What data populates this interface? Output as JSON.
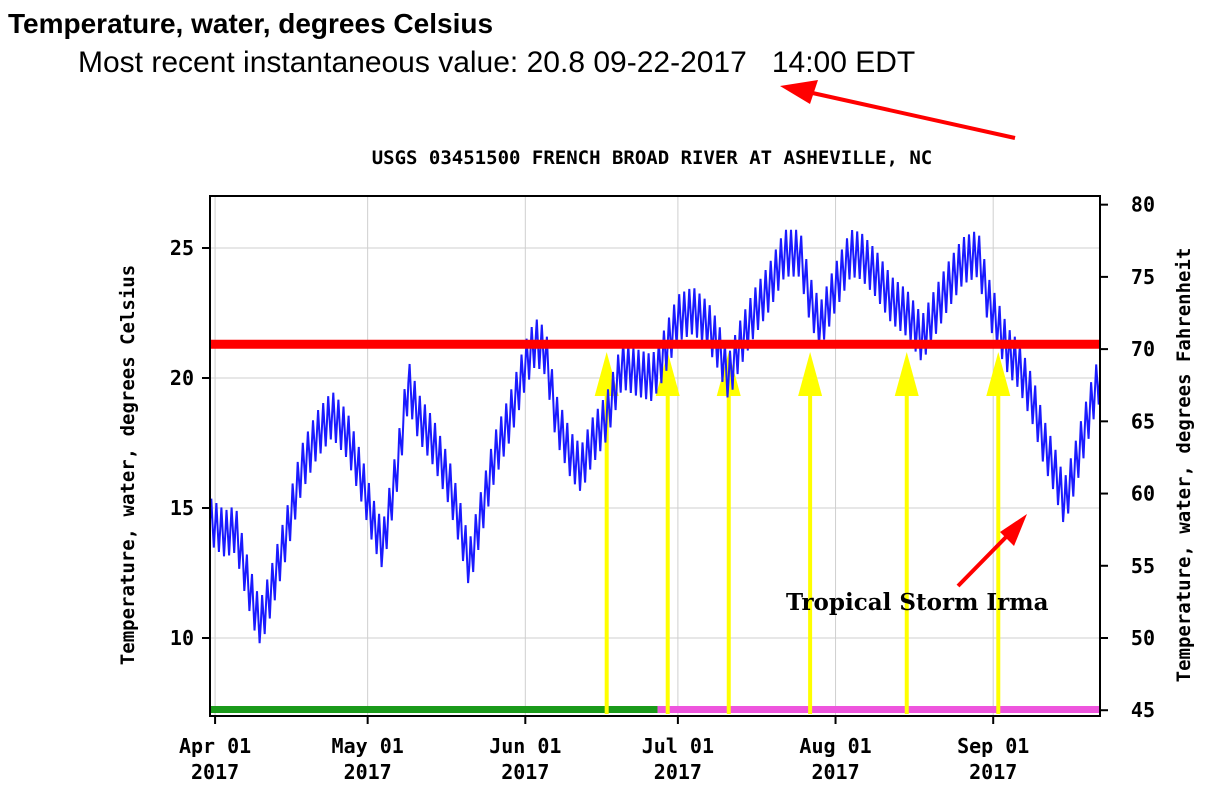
{
  "header": {
    "title": "Temperature, water, degrees Celsius",
    "recent_label": "Most recent instantaneous value:",
    "recent_value": "20.8",
    "recent_date": "09-22-2017",
    "recent_time": "14:00 EDT"
  },
  "chart_data": {
    "type": "line",
    "title": "USGS 03451500 FRENCH BROAD RIVER AT ASHEVILLE, NC",
    "ylabel": "Temperature, water, degrees Celsius",
    "y2label": "Temperature, water, degrees Fahrenheit",
    "ylim": [
      7,
      27
    ],
    "y2lim": [
      44.6,
      80.6
    ],
    "yticks": [
      10,
      15,
      20,
      25
    ],
    "y2ticks": [
      45,
      50,
      55,
      60,
      65,
      70,
      75,
      80
    ],
    "xticks": [
      {
        "date": "2017-04-01",
        "line1": "Apr 01",
        "line2": "2017"
      },
      {
        "date": "2017-05-01",
        "line1": "May 01",
        "line2": "2017"
      },
      {
        "date": "2017-06-01",
        "line1": "Jun 01",
        "line2": "2017"
      },
      {
        "date": "2017-07-01",
        "line1": "Jul 01",
        "line2": "2017"
      },
      {
        "date": "2017-08-01",
        "line1": "Aug 01",
        "line2": "2017"
      },
      {
        "date": "2017-09-01",
        "line1": "Sep 01",
        "line2": "2017"
      }
    ],
    "xrange": [
      "2017-03-31",
      "2017-09-22"
    ],
    "grid": true,
    "series": [
      {
        "color": "#1a1aff",
        "points": [
          [
            "2017-03-31",
            14.5
          ],
          [
            "2017-04-03",
            14.0
          ],
          [
            "2017-04-05",
            14.2
          ],
          [
            "2017-04-07",
            12.5
          ],
          [
            "2017-04-09",
            11.0
          ],
          [
            "2017-04-10",
            10.6
          ],
          [
            "2017-04-12",
            11.8
          ],
          [
            "2017-04-15",
            14.0
          ],
          [
            "2017-04-18",
            16.5
          ],
          [
            "2017-04-21",
            17.8
          ],
          [
            "2017-04-24",
            18.6
          ],
          [
            "2017-04-27",
            17.8
          ],
          [
            "2017-04-30",
            16.0
          ],
          [
            "2017-05-02",
            14.5
          ],
          [
            "2017-05-04",
            13.5
          ],
          [
            "2017-05-07",
            16.8
          ],
          [
            "2017-05-09",
            19.8
          ],
          [
            "2017-05-11",
            18.5
          ],
          [
            "2017-05-14",
            17.5
          ],
          [
            "2017-05-17",
            16.0
          ],
          [
            "2017-05-19",
            14.5
          ],
          [
            "2017-05-21",
            12.8
          ],
          [
            "2017-05-23",
            14.5
          ],
          [
            "2017-05-26",
            17.0
          ],
          [
            "2017-05-29",
            18.5
          ],
          [
            "2017-06-01",
            20.5
          ],
          [
            "2017-06-03",
            21.4
          ],
          [
            "2017-06-05",
            21.0
          ],
          [
            "2017-06-07",
            18.5
          ],
          [
            "2017-06-10",
            17.0
          ],
          [
            "2017-06-12",
            16.5
          ],
          [
            "2017-06-14",
            17.5
          ],
          [
            "2017-06-17",
            18.5
          ],
          [
            "2017-06-20",
            20.5
          ],
          [
            "2017-06-23",
            20.2
          ],
          [
            "2017-06-26",
            20.0
          ],
          [
            "2017-06-28",
            20.8
          ],
          [
            "2017-07-01",
            22.3
          ],
          [
            "2017-07-04",
            22.6
          ],
          [
            "2017-07-07",
            22.0
          ],
          [
            "2017-07-09",
            21.2
          ],
          [
            "2017-07-11",
            20.0
          ],
          [
            "2017-07-13",
            21.2
          ],
          [
            "2017-07-16",
            22.5
          ],
          [
            "2017-07-19",
            23.5
          ],
          [
            "2017-07-22",
            24.8
          ],
          [
            "2017-07-25",
            24.8
          ],
          [
            "2017-07-27",
            23.0
          ],
          [
            "2017-07-29",
            22.0
          ],
          [
            "2017-08-01",
            23.5
          ],
          [
            "2017-08-04",
            24.8
          ],
          [
            "2017-08-06",
            24.7
          ],
          [
            "2017-08-09",
            24.0
          ],
          [
            "2017-08-12",
            23.0
          ],
          [
            "2017-08-15",
            22.5
          ],
          [
            "2017-08-18",
            21.5
          ],
          [
            "2017-08-20",
            22.3
          ],
          [
            "2017-08-23",
            23.5
          ],
          [
            "2017-08-26",
            24.5
          ],
          [
            "2017-08-29",
            24.8
          ],
          [
            "2017-08-31",
            23.0
          ],
          [
            "2017-09-02",
            22.0
          ],
          [
            "2017-09-04",
            21.0
          ],
          [
            "2017-09-06",
            20.5
          ],
          [
            "2017-09-09",
            19.0
          ],
          [
            "2017-09-11",
            17.5
          ],
          [
            "2017-09-13",
            16.5
          ],
          [
            "2017-09-15",
            15.2
          ],
          [
            "2017-09-17",
            16.5
          ],
          [
            "2017-09-19",
            18.0
          ],
          [
            "2017-09-21",
            19.5
          ],
          [
            "2017-09-22",
            20.0
          ]
        ]
      }
    ],
    "reference_line": {
      "y": 21.3,
      "color": "#ff0000"
    },
    "approval_bars": [
      {
        "from": "2017-03-31",
        "to": "2017-06-27",
        "color": "#1a9a1a"
      },
      {
        "from": "2017-06-27",
        "to": "2017-09-22",
        "color": "#ee55dd"
      }
    ],
    "markers": {
      "color": "#ffff00",
      "dates": [
        "2017-06-17",
        "2017-06-29",
        "2017-07-11",
        "2017-07-27",
        "2017-08-15",
        "2017-09-02"
      ]
    },
    "annotation": {
      "text": "Tropical Storm Irma",
      "color": "#000000",
      "arrow_color": "#ff0000"
    }
  }
}
